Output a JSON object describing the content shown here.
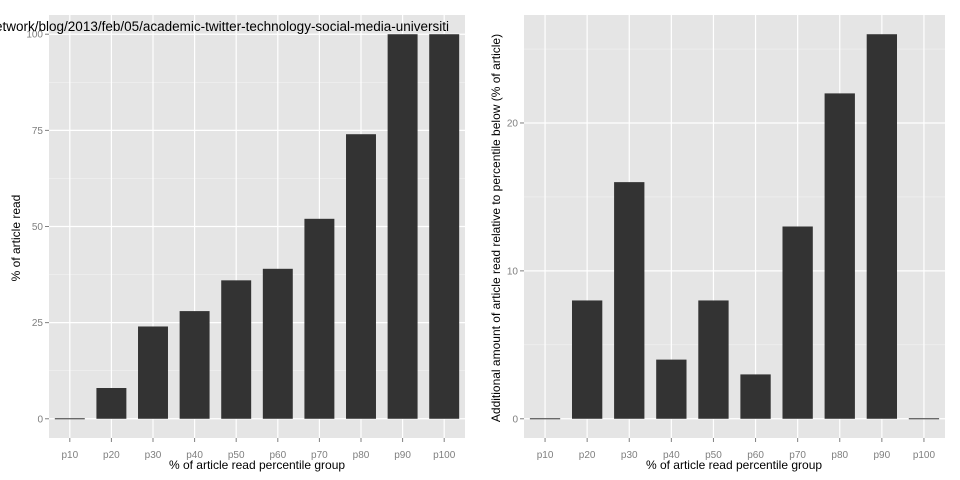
{
  "chart_data": [
    {
      "type": "bar",
      "title": "etwork/blog/2013/feb/05/academic-twitter-technology-social-media-universiti",
      "xlabel": "% of article read percentile group",
      "ylabel": "% of article read",
      "categories": [
        "p10",
        "p20",
        "p30",
        "p40",
        "p50",
        "p60",
        "p70",
        "p80",
        "p90",
        "p100"
      ],
      "values": [
        0,
        8,
        24,
        28,
        36,
        39,
        52,
        74,
        100,
        100
      ],
      "ylim": [
        -5,
        105
      ],
      "yticks": [
        0,
        25,
        50,
        75,
        100
      ],
      "grid": true
    },
    {
      "type": "bar",
      "title": "",
      "xlabel": "% of article read percentile group",
      "ylabel": "Additional amount of article read relative to percentile below (% of article)",
      "categories": [
        "p10",
        "p20",
        "p30",
        "p40",
        "p50",
        "p60",
        "p70",
        "p80",
        "p90",
        "p100"
      ],
      "values": [
        0,
        8,
        16,
        4,
        8,
        3,
        13,
        22,
        26,
        0
      ],
      "ylim": [
        -1.3,
        27.3
      ],
      "yticks": [
        0,
        10,
        20
      ],
      "grid": true
    }
  ]
}
